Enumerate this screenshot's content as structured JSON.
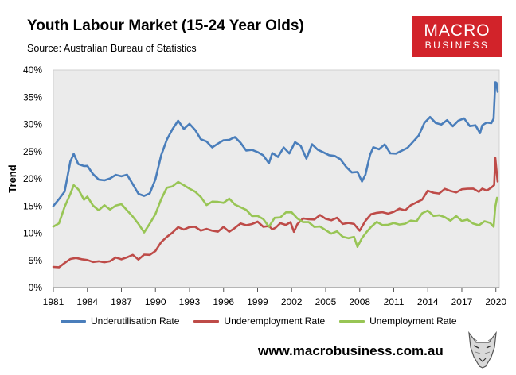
{
  "header": {
    "title": "Youth Labour Market (15-24 Year Olds)",
    "source": "Source: Australian Bureau of Statistics"
  },
  "logo": {
    "line1": "MACRO",
    "line2": "BUSINESS",
    "color": "#d2232a"
  },
  "footer": {
    "website": "www.macrobusiness.com.au",
    "mascot_icon": "wolf-head-icon"
  },
  "chart_data": {
    "type": "line",
    "title": "Youth Labour Market (15-24 Year Olds)",
    "subtitle": "Source: Australian Bureau of Statistics",
    "ylabel": "Trend",
    "xlabel": "",
    "xlim": [
      1981,
      2020.3
    ],
    "ylim": [
      0,
      40
    ],
    "x_ticks": [
      "1981",
      "1984",
      "1987",
      "1990",
      "1993",
      "1996",
      "1999",
      "2002",
      "2005",
      "2008",
      "2011",
      "2014",
      "2017",
      "2020"
    ],
    "y_ticks": [
      "0%",
      "5%",
      "10%",
      "15%",
      "20%",
      "25%",
      "30%",
      "35%",
      "40%"
    ],
    "grid": false,
    "plot_background": "#ebebeb",
    "legend_position": "bottom",
    "series": [
      {
        "name": "Underutilisation Rate",
        "color": "#4a7ebb",
        "points": [
          [
            1981.0,
            15.0
          ],
          [
            1981.5,
            16.0
          ],
          [
            1982.0,
            18.0
          ],
          [
            1982.5,
            23.0
          ],
          [
            1982.8,
            24.5
          ],
          [
            1983.2,
            23.0
          ],
          [
            1983.7,
            22.0
          ],
          [
            1984.0,
            22.5
          ],
          [
            1984.5,
            21.0
          ],
          [
            1985.0,
            19.5
          ],
          [
            1985.5,
            20.0
          ],
          [
            1986.0,
            20.0
          ],
          [
            1986.5,
            20.5
          ],
          [
            1987.0,
            20.8
          ],
          [
            1987.5,
            20.5
          ],
          [
            1988.0,
            19.0
          ],
          [
            1988.5,
            17.5
          ],
          [
            1989.0,
            16.5
          ],
          [
            1989.5,
            17.5
          ],
          [
            1990.0,
            20.0
          ],
          [
            1990.5,
            24.0
          ],
          [
            1991.0,
            27.5
          ],
          [
            1991.5,
            29.0
          ],
          [
            1992.0,
            30.5
          ],
          [
            1992.5,
            29.5
          ],
          [
            1993.0,
            29.8
          ],
          [
            1993.5,
            29.0
          ],
          [
            1994.0,
            27.5
          ],
          [
            1994.5,
            26.5
          ],
          [
            1995.0,
            26.0
          ],
          [
            1995.5,
            26.5
          ],
          [
            1996.0,
            26.8
          ],
          [
            1996.5,
            27.5
          ],
          [
            1997.0,
            27.5
          ],
          [
            1997.5,
            26.5
          ],
          [
            1998.0,
            25.5
          ],
          [
            1998.5,
            25.0
          ],
          [
            1999.0,
            25.0
          ],
          [
            1999.5,
            24.5
          ],
          [
            2000.0,
            22.5
          ],
          [
            2000.3,
            25.0
          ],
          [
            2000.8,
            24.0
          ],
          [
            2001.3,
            25.5
          ],
          [
            2001.8,
            25.0
          ],
          [
            2002.3,
            26.5
          ],
          [
            2002.8,
            26.0
          ],
          [
            2003.3,
            24.0
          ],
          [
            2003.8,
            26.0
          ],
          [
            2004.3,
            25.5
          ],
          [
            2004.8,
            25.0
          ],
          [
            2005.3,
            24.0
          ],
          [
            2005.8,
            24.5
          ],
          [
            2006.3,
            23.5
          ],
          [
            2006.8,
            22.0
          ],
          [
            2007.3,
            21.5
          ],
          [
            2007.8,
            21.0
          ],
          [
            2008.2,
            19.5
          ],
          [
            2008.5,
            21.0
          ],
          [
            2008.9,
            24.0
          ],
          [
            2009.2,
            26.0
          ],
          [
            2009.7,
            25.5
          ],
          [
            2010.2,
            26.0
          ],
          [
            2010.7,
            25.0
          ],
          [
            2011.2,
            24.5
          ],
          [
            2011.7,
            25.0
          ],
          [
            2012.2,
            26.0
          ],
          [
            2012.7,
            26.5
          ],
          [
            2013.2,
            28.0
          ],
          [
            2013.7,
            30.5
          ],
          [
            2014.2,
            31.0
          ],
          [
            2014.7,
            30.5
          ],
          [
            2015.2,
            30.0
          ],
          [
            2015.7,
            30.5
          ],
          [
            2016.2,
            30.0
          ],
          [
            2016.7,
            30.5
          ],
          [
            2017.2,
            31.0
          ],
          [
            2017.7,
            30.0
          ],
          [
            2018.2,
            29.5
          ],
          [
            2018.6,
            28.5
          ],
          [
            2018.8,
            30.0
          ],
          [
            2019.2,
            30.0
          ],
          [
            2019.6,
            30.5
          ],
          [
            2019.8,
            31.0
          ],
          [
            2019.95,
            37.5
          ],
          [
            2020.05,
            38.0
          ],
          [
            2020.15,
            36.0
          ]
        ]
      },
      {
        "name": "Underemployment Rate",
        "color": "#be4b48",
        "points": [
          [
            1981.0,
            3.8
          ],
          [
            1981.5,
            4.0
          ],
          [
            1982.0,
            4.5
          ],
          [
            1982.5,
            5.0
          ],
          [
            1983.0,
            5.8
          ],
          [
            1983.5,
            5.0
          ],
          [
            1984.0,
            5.0
          ],
          [
            1984.5,
            5.0
          ],
          [
            1985.0,
            4.5
          ],
          [
            1985.5,
            4.8
          ],
          [
            1986.0,
            5.0
          ],
          [
            1986.5,
            5.2
          ],
          [
            1987.0,
            5.5
          ],
          [
            1987.5,
            5.5
          ],
          [
            1988.0,
            5.8
          ],
          [
            1988.5,
            5.5
          ],
          [
            1989.0,
            5.8
          ],
          [
            1989.5,
            6.0
          ],
          [
            1990.0,
            7.0
          ],
          [
            1990.5,
            8.0
          ],
          [
            1991.0,
            9.5
          ],
          [
            1991.5,
            10.2
          ],
          [
            1992.0,
            10.8
          ],
          [
            1992.5,
            11.0
          ],
          [
            1993.0,
            11.0
          ],
          [
            1993.5,
            11.0
          ],
          [
            1994.0,
            10.8
          ],
          [
            1994.5,
            10.5
          ],
          [
            1995.0,
            10.5
          ],
          [
            1995.5,
            10.5
          ],
          [
            1996.0,
            10.8
          ],
          [
            1996.5,
            10.5
          ],
          [
            1997.0,
            11.0
          ],
          [
            1997.5,
            11.5
          ],
          [
            1998.0,
            11.8
          ],
          [
            1998.5,
            11.5
          ],
          [
            1999.0,
            12.0
          ],
          [
            1999.5,
            11.5
          ],
          [
            2000.0,
            11.0
          ],
          [
            2000.3,
            10.8
          ],
          [
            2000.6,
            11.2
          ],
          [
            2001.0,
            11.5
          ],
          [
            2001.5,
            11.8
          ],
          [
            2001.9,
            12.0
          ],
          [
            2002.2,
            10.0
          ],
          [
            2002.5,
            12.0
          ],
          [
            2003.0,
            12.5
          ],
          [
            2003.5,
            12.5
          ],
          [
            2004.0,
            12.8
          ],
          [
            2004.5,
            13.0
          ],
          [
            2005.0,
            12.8
          ],
          [
            2005.5,
            12.5
          ],
          [
            2006.0,
            12.5
          ],
          [
            2006.5,
            12.0
          ],
          [
            2007.0,
            11.8
          ],
          [
            2007.5,
            11.5
          ],
          [
            2008.0,
            10.8
          ],
          [
            2008.5,
            12.0
          ],
          [
            2009.0,
            13.5
          ],
          [
            2009.5,
            14.0
          ],
          [
            2010.0,
            13.5
          ],
          [
            2010.5,
            13.8
          ],
          [
            2011.0,
            14.0
          ],
          [
            2011.5,
            14.2
          ],
          [
            2012.0,
            14.5
          ],
          [
            2012.5,
            15.0
          ],
          [
            2013.0,
            15.5
          ],
          [
            2013.5,
            16.5
          ],
          [
            2014.0,
            17.5
          ],
          [
            2014.5,
            17.5
          ],
          [
            2015.0,
            17.5
          ],
          [
            2015.5,
            17.8
          ],
          [
            2016.0,
            18.0
          ],
          [
            2016.5,
            17.5
          ],
          [
            2017.0,
            17.8
          ],
          [
            2017.5,
            18.5
          ],
          [
            2018.0,
            18.0
          ],
          [
            2018.5,
            17.5
          ],
          [
            2018.8,
            18.5
          ],
          [
            2019.2,
            17.5
          ],
          [
            2019.6,
            18.5
          ],
          [
            2019.85,
            19.0
          ],
          [
            2019.95,
            23.5
          ],
          [
            2020.05,
            22.0
          ],
          [
            2020.15,
            19.5
          ]
        ]
      },
      {
        "name": "Unemployment Rate",
        "color": "#98c555",
        "points": [
          [
            1981.0,
            11.2
          ],
          [
            1981.5,
            12.0
          ],
          [
            1982.0,
            14.5
          ],
          [
            1982.5,
            17.5
          ],
          [
            1982.8,
            18.8
          ],
          [
            1983.2,
            17.8
          ],
          [
            1983.7,
            16.5
          ],
          [
            1984.0,
            16.5
          ],
          [
            1984.5,
            15.0
          ],
          [
            1985.0,
            14.5
          ],
          [
            1985.5,
            14.8
          ],
          [
            1986.0,
            14.5
          ],
          [
            1986.5,
            15.2
          ],
          [
            1987.0,
            15.0
          ],
          [
            1987.5,
            14.5
          ],
          [
            1988.0,
            13.0
          ],
          [
            1988.5,
            11.5
          ],
          [
            1989.0,
            10.5
          ],
          [
            1989.5,
            11.5
          ],
          [
            1990.0,
            13.5
          ],
          [
            1990.5,
            16.5
          ],
          [
            1991.0,
            18.0
          ],
          [
            1991.5,
            18.8
          ],
          [
            1992.0,
            19.5
          ],
          [
            1992.5,
            18.5
          ],
          [
            1993.0,
            18.5
          ],
          [
            1993.5,
            17.5
          ],
          [
            1994.0,
            16.5
          ],
          [
            1994.5,
            15.5
          ],
          [
            1995.0,
            15.5
          ],
          [
            1995.5,
            15.8
          ],
          [
            1996.0,
            15.8
          ],
          [
            1996.5,
            16.0
          ],
          [
            1997.0,
            15.5
          ],
          [
            1997.5,
            14.8
          ],
          [
            1998.0,
            14.0
          ],
          [
            1998.5,
            13.5
          ],
          [
            1999.0,
            13.0
          ],
          [
            1999.5,
            12.5
          ],
          [
            2000.0,
            11.5
          ],
          [
            2000.5,
            12.5
          ],
          [
            2001.0,
            13.0
          ],
          [
            2001.5,
            14.0
          ],
          [
            2002.0,
            13.5
          ],
          [
            2002.5,
            13.0
          ],
          [
            2003.0,
            12.0
          ],
          [
            2003.5,
            11.8
          ],
          [
            2004.0,
            11.5
          ],
          [
            2004.5,
            11.0
          ],
          [
            2005.0,
            10.5
          ],
          [
            2005.5,
            10.2
          ],
          [
            2006.0,
            10.0
          ],
          [
            2006.5,
            9.5
          ],
          [
            2007.0,
            9.2
          ],
          [
            2007.5,
            9.0
          ],
          [
            2007.8,
            7.8
          ],
          [
            2008.2,
            9.0
          ],
          [
            2008.6,
            10.0
          ],
          [
            2009.0,
            11.5
          ],
          [
            2009.5,
            11.8
          ],
          [
            2010.0,
            11.5
          ],
          [
            2010.5,
            11.8
          ],
          [
            2011.0,
            11.5
          ],
          [
            2011.5,
            11.8
          ],
          [
            2012.0,
            11.8
          ],
          [
            2012.5,
            12.0
          ],
          [
            2013.0,
            12.5
          ],
          [
            2013.5,
            13.5
          ],
          [
            2014.0,
            14.0
          ],
          [
            2014.5,
            13.5
          ],
          [
            2015.0,
            13.0
          ],
          [
            2015.5,
            13.0
          ],
          [
            2016.0,
            12.5
          ],
          [
            2016.5,
            12.8
          ],
          [
            2017.0,
            12.5
          ],
          [
            2017.5,
            12.5
          ],
          [
            2018.0,
            11.5
          ],
          [
            2018.5,
            11.8
          ],
          [
            2019.0,
            12.0
          ],
          [
            2019.5,
            11.8
          ],
          [
            2019.8,
            11.5
          ],
          [
            2019.95,
            14.5
          ],
          [
            2020.1,
            16.5
          ]
        ]
      }
    ]
  }
}
